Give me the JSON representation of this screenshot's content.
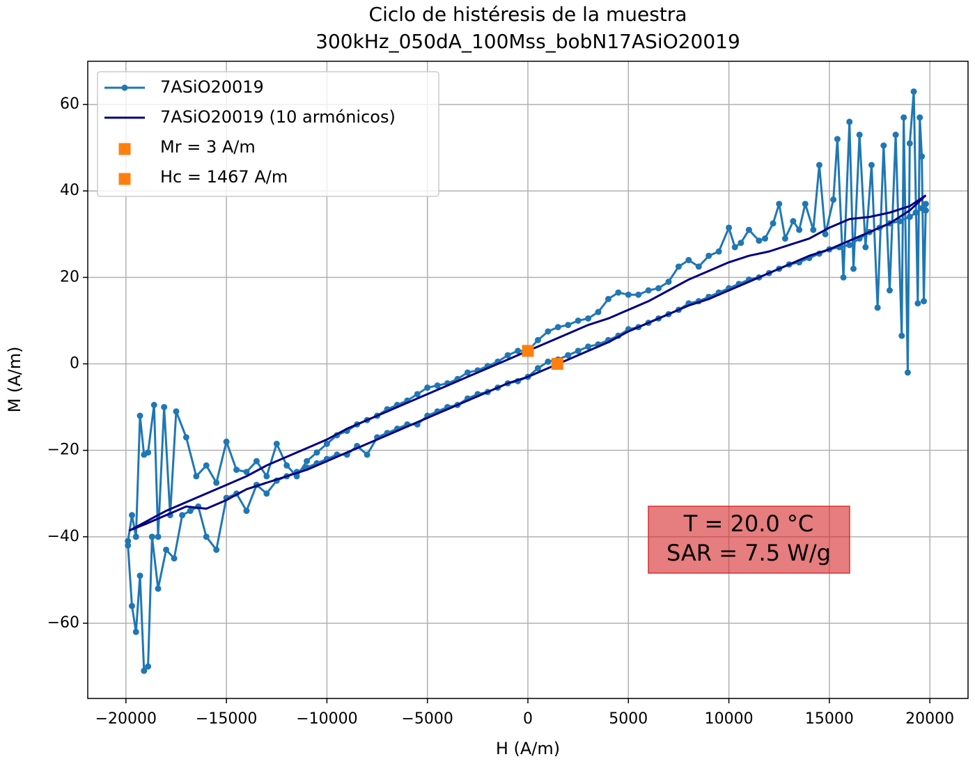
{
  "chart_data": {
    "type": "line",
    "title": "Ciclo de histéresis de la muestra",
    "subtitle": "300kHz_050dA_100Mss_bobN17ASiO20019",
    "xlabel": "H (A/m)",
    "ylabel": "M (A/m)",
    "xlim": [
      -21900,
      21900
    ],
    "ylim": [
      -77.4,
      70
    ],
    "xticks": [
      {
        "value": -20000,
        "label": "−20000"
      },
      {
        "value": -15000,
        "label": "−15000"
      },
      {
        "value": -10000,
        "label": "−10000"
      },
      {
        "value": -5000,
        "label": "−5000"
      },
      0,
      5000,
      10000,
      15000,
      20000
    ],
    "yticks": [
      {
        "value": -60,
        "label": "−60"
      },
      {
        "value": -40,
        "label": "−40"
      },
      {
        "value": -20,
        "label": "−20"
      },
      0,
      20,
      40,
      60
    ],
    "grid": true,
    "legend": "upper left",
    "annotation": [
      "T = 20.0 °C",
      "SAR = 7.5 W/g"
    ],
    "series": [
      {
        "name": "7ASiO20019",
        "color": "#1f77b4",
        "marker": "circle",
        "line": true,
        "x": [
          -19900,
          -19700,
          -19500,
          -19300,
          -19100,
          -18900,
          -18700,
          -18400,
          -18000,
          -17600,
          -17200,
          -16800,
          -16400,
          -16000,
          -15500,
          -15000,
          -14500,
          -14000,
          -13500,
          -13000,
          -12500,
          -12000,
          -11500,
          -11000,
          -10500,
          -10000,
          -9500,
          -9000,
          -8500,
          -8000,
          -7500,
          -7000,
          -6500,
          -6000,
          -5500,
          -5000,
          -4500,
          -4000,
          -3500,
          -3000,
          -2500,
          -2000,
          -1500,
          -1000,
          -500,
          0,
          500,
          1000,
          1500,
          2000,
          2500,
          3000,
          3500,
          4000,
          4500,
          5000,
          5500,
          6000,
          6500,
          7000,
          7500,
          8000,
          8500,
          9000,
          9500,
          10000,
          10500,
          11000,
          11500,
          12000,
          12500,
          13000,
          13500,
          14000,
          14500,
          15000,
          15500,
          16000,
          16500,
          17000,
          17500,
          18000,
          18500,
          19000,
          19300,
          19600,
          19800,
          19800,
          19700,
          19600,
          19500,
          19400,
          19200,
          19000,
          18900,
          18700,
          18600,
          18300,
          18000,
          17700,
          17400,
          17100,
          16800,
          16500,
          16200,
          16000,
          15700,
          15400,
          15200,
          14800,
          14500,
          14200,
          13800,
          13500,
          13200,
          12800,
          12500,
          12200,
          11800,
          11500,
          11000,
          10600,
          10300,
          10000,
          9500,
          9000,
          8500,
          8000,
          7500,
          7000,
          6500,
          6000,
          5500,
          5000,
          4500,
          4000,
          3500,
          3000,
          2500,
          2000,
          1500,
          1000,
          500,
          0,
          -500,
          -1000,
          -1500,
          -2000,
          -2500,
          -3000,
          -3500,
          -4000,
          -4500,
          -5000,
          -5500,
          -6000,
          -6500,
          -7000,
          -7500,
          -8000,
          -8500,
          -9000,
          -9500,
          -10000,
          -10500,
          -11000,
          -11500,
          -12000,
          -12500,
          -13000,
          -13500,
          -14000,
          -14500,
          -15000,
          -15500,
          -16000,
          -16500,
          -17000,
          -17500,
          -17800,
          -18100,
          -18400,
          -18600,
          -18900,
          -19100,
          -19300,
          -19500,
          -19700,
          -19900
        ],
        "values": [
          -42,
          -56,
          -62,
          -49,
          -71,
          -70,
          -40,
          -52,
          -43,
          -45,
          -35,
          -34,
          -33,
          -40,
          -43,
          -31,
          -30,
          -34,
          -28,
          -30,
          -27,
          -26,
          -25,
          -24,
          -23,
          -22,
          -21,
          -21,
          -19,
          -21,
          -17,
          -16,
          -15,
          -14,
          -14,
          -12,
          -11,
          -10,
          -9.5,
          -8,
          -7,
          -6.5,
          -5.5,
          -4.5,
          -4,
          -3,
          -1,
          0.5,
          1,
          2,
          3,
          4,
          4.5,
          5.5,
          6.5,
          8,
          8.5,
          9.5,
          10.5,
          11.5,
          12.5,
          14,
          14.5,
          15.5,
          16.5,
          17.5,
          18.5,
          19.5,
          20,
          21,
          22,
          23,
          23.5,
          24.5,
          25.5,
          26.5,
          27,
          27.5,
          29,
          30.5,
          31.5,
          32.5,
          33,
          34,
          35,
          36,
          35.5,
          37,
          14.5,
          48,
          57,
          14,
          63,
          51,
          -2,
          57,
          6.5,
          53,
          17,
          50.5,
          13,
          46,
          27,
          53,
          22,
          56,
          20,
          52,
          38,
          30,
          46,
          31,
          37,
          31,
          33,
          29,
          37,
          32.5,
          29,
          28.5,
          31,
          28,
          27,
          31.5,
          26,
          25,
          22.5,
          24,
          22.5,
          19,
          17.5,
          17,
          16,
          16,
          16.5,
          15,
          12,
          10.5,
          10,
          9,
          8.5,
          7.5,
          5.5,
          3,
          3,
          2,
          0.5,
          -0.5,
          -1.5,
          -2,
          -3.5,
          -4.5,
          -5,
          -5.5,
          -7,
          -8.5,
          -9.5,
          -10.5,
          -12,
          -13,
          -14,
          -15.5,
          -16.5,
          -18.5,
          -20.5,
          -22.5,
          -26,
          -23.5,
          -18.5,
          -26,
          -22.5,
          -25,
          -24.5,
          -18,
          -27.5,
          -23.5,
          -26,
          -17,
          -11,
          -35,
          -10,
          -40,
          -9.5,
          -20.5,
          -21,
          -12,
          -40,
          -35,
          -41
        ]
      },
      {
        "name": "7ASiO20019 (10 armónicos)",
        "color": "#000080",
        "marker": "none",
        "line": true,
        "x": [
          19800,
          19000,
          18000,
          17000,
          16000,
          15000,
          14000,
          13000,
          12000,
          11000,
          10000,
          9000,
          8000,
          7000,
          6000,
          5000,
          4000,
          3000,
          2000,
          1000,
          0,
          -1000,
          -2000,
          -3000,
          -4000,
          -5000,
          -6000,
          -7000,
          -8000,
          -9000,
          -10000,
          -11000,
          -12000,
          -13000,
          -14000,
          -15000,
          -16000,
          -17000,
          -18000,
          -19000,
          -19800,
          -19000,
          -18000,
          -17000,
          -16000,
          -15000,
          -14000,
          -13000,
          -12000,
          -11000,
          -10000,
          -9000,
          -8000,
          -7000,
          -6000,
          -5000,
          -4000,
          -3000,
          -2000,
          -1000,
          0,
          1000,
          2000,
          3000,
          4000,
          5000,
          6000,
          7000,
          8000,
          9000,
          10000,
          11000,
          12000,
          13000,
          14000,
          15000,
          16000,
          17000,
          18000,
          19000,
          19800
        ],
        "values": [
          39,
          36.5,
          35,
          34,
          33.5,
          31.5,
          29,
          27.5,
          26,
          25,
          23.5,
          21.5,
          19.5,
          17,
          14.5,
          12.5,
          10.5,
          9,
          7,
          5,
          3,
          1,
          -1,
          -3,
          -5,
          -7,
          -9,
          -11,
          -13,
          -15,
          -17.5,
          -19.5,
          -21.5,
          -23.5,
          -26,
          -28,
          -30,
          -32,
          -34,
          -36.5,
          -38.5,
          -37,
          -35,
          -33,
          -33.5,
          -31.5,
          -29,
          -27.5,
          -26,
          -24.5,
          -22.5,
          -20.5,
          -18.5,
          -16.5,
          -14.5,
          -12.5,
          -10.5,
          -8.5,
          -6.5,
          -4.5,
          -3,
          -1,
          1,
          3,
          5,
          7.5,
          9.5,
          11.5,
          13.5,
          15,
          17,
          19,
          21,
          23,
          25,
          26.5,
          28.5,
          30.5,
          32.5,
          35.5,
          39
        ]
      },
      {
        "name": "Mr = 3 A/m",
        "color": "#ff7f0e",
        "marker": "square",
        "line": false,
        "x": [
          0
        ],
        "values": [
          3
        ]
      },
      {
        "name": "Hc = 1467 A/m",
        "color": "#ff7f0e",
        "marker": "square",
        "line": false,
        "x": [
          1467
        ],
        "values": [
          0
        ]
      }
    ]
  }
}
